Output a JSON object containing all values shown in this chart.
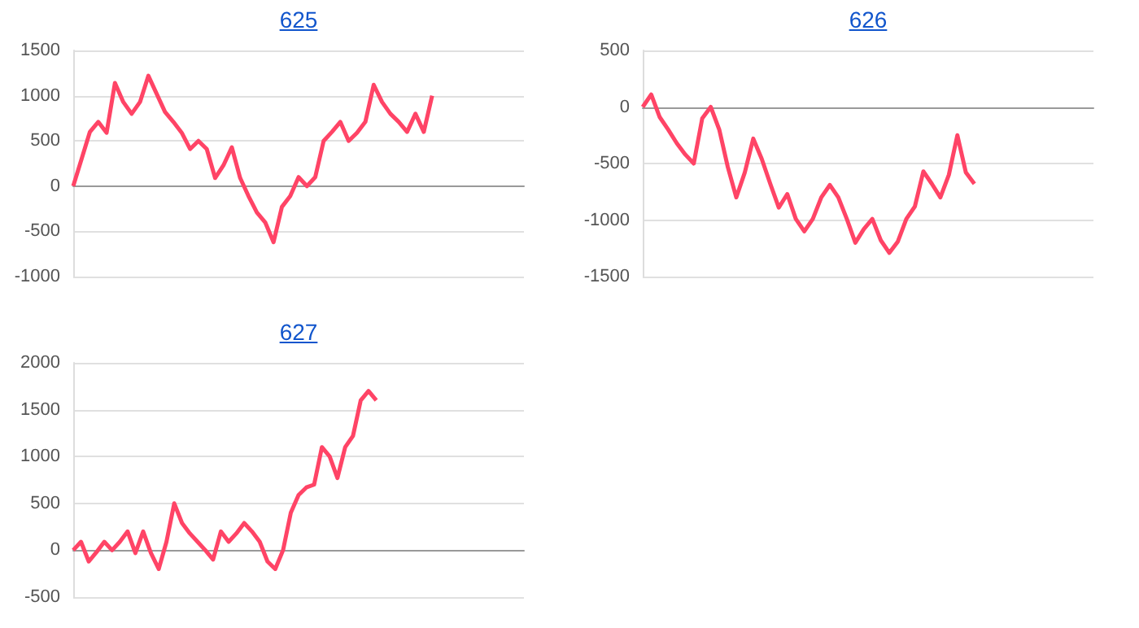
{
  "chart_data": [
    {
      "type": "line",
      "title": "625",
      "color": "#ff4466",
      "ylim": [
        -1000,
        1500
      ],
      "yticks": [
        -1000,
        -500,
        0,
        500,
        1000,
        1500
      ],
      "grid": "y",
      "tick_labels": "y",
      "categories": [
        null,
        null,
        null,
        null,
        null,
        null,
        null,
        null,
        null,
        null,
        null,
        null,
        null,
        null,
        null,
        null,
        null,
        null,
        null,
        null,
        null,
        null,
        null,
        null,
        null,
        null,
        null,
        null,
        null,
        null,
        null,
        null,
        null,
        null,
        null,
        null,
        null,
        null,
        null,
        null,
        null,
        null,
        null,
        null,
        null,
        null,
        null,
        null,
        null,
        null,
        null,
        null,
        null,
        null,
        null
      ],
      "values": [
        0,
        300,
        600,
        710,
        590,
        1140,
        930,
        800,
        930,
        1220,
        1020,
        820,
        710,
        590,
        410,
        500,
        410,
        90,
        230,
        430,
        90,
        -110,
        -290,
        -400,
        -620,
        -230,
        -110,
        100,
        0,
        100,
        500,
        600,
        710,
        500,
        590,
        710,
        1120,
        930,
        800,
        710,
        600,
        800,
        600,
        1000,
        null,
        null,
        null,
        null,
        null,
        null,
        null,
        null,
        null,
        null,
        null
      ]
    },
    {
      "type": "line",
      "title": "626",
      "color": "#ff4466",
      "ylim": [
        -1500,
        500
      ],
      "yticks": [
        -1500,
        -1000,
        -500,
        0,
        500
      ],
      "grid": "y",
      "tick_labels": "y",
      "categories": [
        null,
        null,
        null,
        null,
        null,
        null,
        null,
        null,
        null,
        null,
        null,
        null,
        null,
        null,
        null,
        null,
        null,
        null,
        null,
        null,
        null,
        null,
        null,
        null,
        null,
        null,
        null,
        null,
        null,
        null,
        null,
        null,
        null,
        null,
        null,
        null,
        null,
        null,
        null,
        null,
        null,
        null,
        null,
        null,
        null,
        null,
        null,
        null,
        null,
        null,
        null,
        null,
        null,
        null
      ],
      "values": [
        0,
        110,
        -90,
        -200,
        -320,
        -420,
        -500,
        -100,
        0,
        -200,
        -530,
        -800,
        -580,
        -280,
        -460,
        -680,
        -890,
        -770,
        -990,
        -1100,
        -990,
        -800,
        -690,
        -800,
        -990,
        -1200,
        -1080,
        -990,
        -1180,
        -1290,
        -1190,
        -990,
        -880,
        -570,
        -680,
        -800,
        -600,
        -250,
        -580,
        -680,
        null,
        null,
        null,
        null,
        null,
        null,
        null,
        null,
        null,
        null,
        null,
        null,
        null,
        null
      ]
    },
    {
      "type": "line",
      "title": "627",
      "color": "#ff4466",
      "ylim": [
        -500,
        2000
      ],
      "yticks": [
        -500,
        0,
        500,
        1000,
        1500,
        2000
      ],
      "grid": "y",
      "tick_labels": "y",
      "categories": [
        null,
        null,
        null,
        null,
        null,
        null,
        null,
        null,
        null,
        null,
        null,
        null,
        null,
        null,
        null,
        null,
        null,
        null,
        null,
        null,
        null,
        null,
        null,
        null,
        null,
        null,
        null,
        null,
        null,
        null,
        null,
        null,
        null,
        null,
        null,
        null,
        null,
        null,
        null,
        null,
        null,
        null,
        null,
        null,
        null,
        null,
        null,
        null,
        null,
        null,
        null,
        null,
        null,
        null,
        null,
        null,
        null,
        null,
        null
      ],
      "values": [
        0,
        90,
        -120,
        -20,
        90,
        0,
        90,
        200,
        -30,
        200,
        -30,
        -200,
        90,
        500,
        290,
        180,
        90,
        0,
        -100,
        200,
        90,
        180,
        290,
        200,
        90,
        -120,
        -200,
        0,
        400,
        590,
        670,
        700,
        1100,
        1000,
        770,
        1100,
        1220,
        1600,
        1700,
        1600,
        null,
        null,
        null,
        null,
        null,
        null,
        null,
        null,
        null,
        null,
        null,
        null,
        null,
        null,
        null,
        null,
        null,
        null,
        null
      ]
    }
  ]
}
